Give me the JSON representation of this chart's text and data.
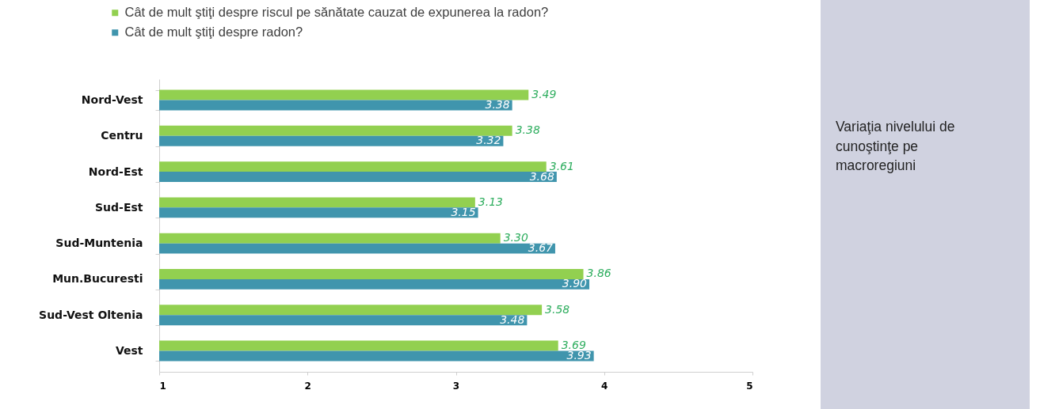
{
  "chart_data": [
    {
      "type": "bar",
      "orientation": "horizontal",
      "categories": [
        "Nord-Vest",
        "Centru",
        "Nord-Est",
        "Sud-Est",
        "Sud-Muntenia",
        "Mun.Bucuresti",
        "Sud-Vest Oltenia",
        "Vest"
      ],
      "series": [
        {
          "name": "Cât de mult ştiţi despre riscul pe sănătate cauzat de expunerea la radon?",
          "color": "#92d050",
          "values": [
            3.49,
            3.38,
            3.61,
            3.13,
            3.3,
            3.86,
            3.58,
            3.69
          ],
          "value_labels": [
            "3.49",
            "3.38",
            "3.61",
            "3.13",
            "3.30",
            "3.86",
            "3.58",
            "3.69"
          ]
        },
        {
          "name": "Cât de mult ştiţi despre  radon?",
          "color": "#4095ad",
          "values": [
            3.38,
            3.32,
            3.68,
            3.15,
            3.67,
            3.9,
            3.48,
            3.93
          ],
          "value_labels": [
            "3.38",
            "3.32",
            "3.68",
            "3.15",
            "3.67",
            "3.90",
            "3.48",
            "3.93"
          ]
        }
      ],
      "xlim": [
        1,
        5
      ],
      "xticks": [
        1,
        2,
        3,
        4,
        5
      ],
      "grid": false,
      "legend": "top left"
    },
    {
      "type": "other",
      "title": "Variaţia nivelului de cunoştinţe pe macroregiuni"
    }
  ]
}
